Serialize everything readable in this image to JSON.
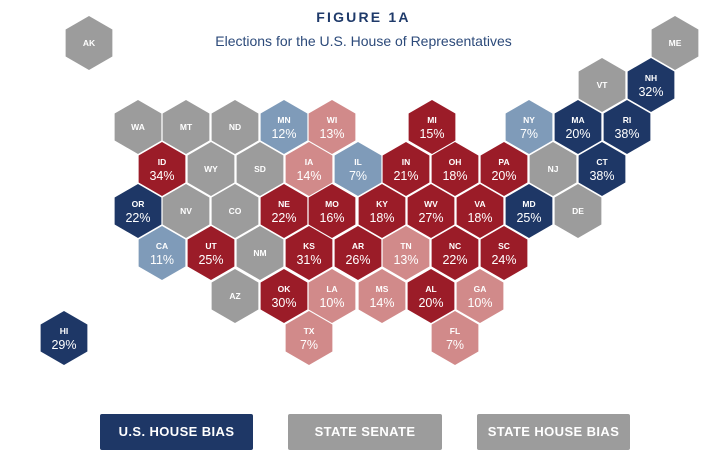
{
  "header": {
    "figure_label": "FIGURE 1A",
    "title": "Elections for the U.S. House of Representatives"
  },
  "colors": {
    "dark_blue": "#1e3766",
    "light_blue": "#7f9bb9",
    "dark_red": "#9b1c28",
    "light_red": "#d18a8a",
    "gray": "#9c9c9c",
    "active_tab": "#1e3766",
    "inactive_tab": "#9c9c9c"
  },
  "states": [
    {
      "abbr": "AK",
      "value": "",
      "color": "gray"
    },
    {
      "abbr": "ME",
      "value": "",
      "color": "gray"
    },
    {
      "abbr": "VT",
      "value": "",
      "color": "gray"
    },
    {
      "abbr": "NH",
      "value": "32%",
      "color": "dark_blue"
    },
    {
      "abbr": "WA",
      "value": "",
      "color": "gray"
    },
    {
      "abbr": "MT",
      "value": "",
      "color": "gray"
    },
    {
      "abbr": "ND",
      "value": "",
      "color": "gray"
    },
    {
      "abbr": "MN",
      "value": "12%",
      "color": "light_blue"
    },
    {
      "abbr": "WI",
      "value": "13%",
      "color": "light_red"
    },
    {
      "abbr": "MI",
      "value": "15%",
      "color": "dark_red"
    },
    {
      "abbr": "NY",
      "value": "7%",
      "color": "light_blue"
    },
    {
      "abbr": "MA",
      "value": "20%",
      "color": "dark_blue"
    },
    {
      "abbr": "RI",
      "value": "38%",
      "color": "dark_blue"
    },
    {
      "abbr": "ID",
      "value": "34%",
      "color": "dark_red"
    },
    {
      "abbr": "WY",
      "value": "",
      "color": "gray"
    },
    {
      "abbr": "SD",
      "value": "",
      "color": "gray"
    },
    {
      "abbr": "IA",
      "value": "14%",
      "color": "light_red"
    },
    {
      "abbr": "IL",
      "value": "7%",
      "color": "light_blue"
    },
    {
      "abbr": "IN",
      "value": "21%",
      "color": "dark_red"
    },
    {
      "abbr": "OH",
      "value": "18%",
      "color": "dark_red"
    },
    {
      "abbr": "PA",
      "value": "20%",
      "color": "dark_red"
    },
    {
      "abbr": "NJ",
      "value": "",
      "color": "gray"
    },
    {
      "abbr": "CT",
      "value": "38%",
      "color": "dark_blue"
    },
    {
      "abbr": "OR",
      "value": "22%",
      "color": "dark_blue"
    },
    {
      "abbr": "NV",
      "value": "",
      "color": "gray"
    },
    {
      "abbr": "CO",
      "value": "",
      "color": "gray"
    },
    {
      "abbr": "NE",
      "value": "22%",
      "color": "dark_red"
    },
    {
      "abbr": "MO",
      "value": "16%",
      "color": "dark_red"
    },
    {
      "abbr": "KY",
      "value": "18%",
      "color": "dark_red"
    },
    {
      "abbr": "WV",
      "value": "27%",
      "color": "dark_red"
    },
    {
      "abbr": "VA",
      "value": "18%",
      "color": "dark_red"
    },
    {
      "abbr": "MD",
      "value": "25%",
      "color": "dark_blue"
    },
    {
      "abbr": "DE",
      "value": "",
      "color": "gray"
    },
    {
      "abbr": "CA",
      "value": "11%",
      "color": "light_blue"
    },
    {
      "abbr": "UT",
      "value": "25%",
      "color": "dark_red"
    },
    {
      "abbr": "NM",
      "value": "",
      "color": "gray"
    },
    {
      "abbr": "KS",
      "value": "31%",
      "color": "dark_red"
    },
    {
      "abbr": "AR",
      "value": "26%",
      "color": "dark_red"
    },
    {
      "abbr": "TN",
      "value": "13%",
      "color": "light_red"
    },
    {
      "abbr": "NC",
      "value": "22%",
      "color": "dark_red"
    },
    {
      "abbr": "SC",
      "value": "24%",
      "color": "dark_red"
    },
    {
      "abbr": "AZ",
      "value": "",
      "color": "gray"
    },
    {
      "abbr": "OK",
      "value": "30%",
      "color": "dark_red"
    },
    {
      "abbr": "LA",
      "value": "10%",
      "color": "light_red"
    },
    {
      "abbr": "MS",
      "value": "14%",
      "color": "light_red"
    },
    {
      "abbr": "AL",
      "value": "20%",
      "color": "dark_red"
    },
    {
      "abbr": "GA",
      "value": "10%",
      "color": "light_red"
    },
    {
      "abbr": "TX",
      "value": "7%",
      "color": "light_red"
    },
    {
      "abbr": "FL",
      "value": "7%",
      "color": "light_red"
    },
    {
      "abbr": "HI",
      "value": "29%",
      "color": "dark_blue"
    }
  ],
  "tabs": [
    {
      "label": "U.S. HOUSE BIAS",
      "active": true
    },
    {
      "label": "STATE SENATE",
      "active": false
    },
    {
      "label": "STATE HOUSE BIAS",
      "active": false
    }
  ]
}
